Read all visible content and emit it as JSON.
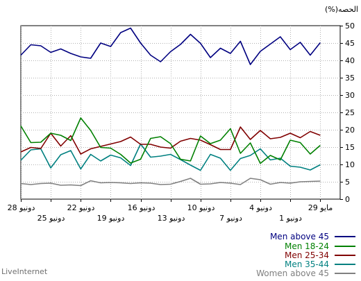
{
  "chart_data": {
    "type": "line",
    "title": "",
    "ylabel": "(%)الحصه",
    "ylim": [
      0,
      50
    ],
    "yticks": [
      0,
      5,
      10,
      15,
      20,
      25,
      30,
      35,
      40,
      45,
      50
    ],
    "grid": true,
    "legend_position": "bottom-right",
    "x_days": 32,
    "x_ticks": [
      {
        "day": 0,
        "label": "28 دونيو",
        "row": 1
      },
      {
        "day": 3,
        "label": "25 دونيو",
        "row": 2
      },
      {
        "day": 6,
        "label": "22 دونيو",
        "row": 1
      },
      {
        "day": 9,
        "label": "19 دونيو",
        "row": 2
      },
      {
        "day": 12,
        "label": "16 دونيو",
        "row": 1
      },
      {
        "day": 15,
        "label": "13 دونيو",
        "row": 2
      },
      {
        "day": 18,
        "label": "10 دونيو",
        "row": 1
      },
      {
        "day": 21,
        "label": "7 دونيو",
        "row": 2
      },
      {
        "day": 24,
        "label": "4 دونيو",
        "row": 1
      },
      {
        "day": 27,
        "label": "1 دونيو",
        "row": 2
      },
      {
        "day": 30,
        "label": "29 مايو",
        "row": 1
      }
    ],
    "series": [
      {
        "name": "Men above 45",
        "color": "#000080",
        "values": [
          41.5,
          44.5,
          44.2,
          42.3,
          43.3,
          42.0,
          41.0,
          40.6,
          45.0,
          44.0,
          48.0,
          49.3,
          45.0,
          41.5,
          39.6,
          42.5,
          44.6,
          47.5,
          44.9,
          40.8,
          43.5,
          42.0,
          45.5,
          38.8,
          42.6,
          44.7,
          46.8,
          43.1,
          45.2,
          41.5,
          45.1
        ]
      },
      {
        "name": "Men 18-24",
        "color": "#008000",
        "values": [
          21.1,
          16.3,
          16.4,
          19.0,
          18.4,
          16.9,
          23.4,
          19.8,
          14.9,
          14.7,
          12.9,
          10.4,
          11.5,
          17.5,
          18.0,
          16.0,
          11.5,
          11.0,
          18.2,
          16.0,
          17.0,
          20.3,
          13.2,
          16.2,
          10.3,
          12.6,
          11.3,
          17.0,
          16.3,
          13.0,
          15.5
        ]
      },
      {
        "name": "Men 25-34",
        "color": "#800000",
        "values": [
          13.6,
          14.9,
          14.6,
          19.0,
          15.3,
          18.3,
          13.0,
          14.5,
          15.2,
          15.9,
          16.6,
          17.9,
          15.8,
          15.8,
          15.0,
          14.7,
          16.7,
          17.5,
          17.0,
          15.7,
          14.3,
          14.3,
          20.8,
          17.2,
          19.8,
          17.4,
          17.8,
          19.0,
          17.7,
          19.5,
          18.4
        ]
      },
      {
        "name": "Men 35-44",
        "color": "#008080",
        "values": [
          11.2,
          14.2,
          14.5,
          9.0,
          12.8,
          14.0,
          8.7,
          12.9,
          11.0,
          12.7,
          11.9,
          9.7,
          15.9,
          12.1,
          12.4,
          12.9,
          11.4,
          9.8,
          8.3,
          12.9,
          11.8,
          8.3,
          11.7,
          12.6,
          14.5,
          11.3,
          11.8,
          9.5,
          9.2,
          8.4,
          9.9
        ]
      },
      {
        "name": "Women above 45",
        "color": "#808080",
        "values": [
          4.5,
          4.2,
          4.5,
          4.6,
          4.0,
          4.1,
          3.9,
          5.3,
          4.7,
          4.8,
          4.7,
          4.5,
          4.7,
          4.6,
          4.2,
          4.3,
          5.1,
          6.0,
          4.3,
          4.4,
          4.8,
          4.6,
          4.2,
          6.0,
          5.6,
          4.3,
          4.8,
          4.6,
          5.0,
          5.1,
          5.2
        ]
      }
    ]
  },
  "watermark": "LiveInternet"
}
